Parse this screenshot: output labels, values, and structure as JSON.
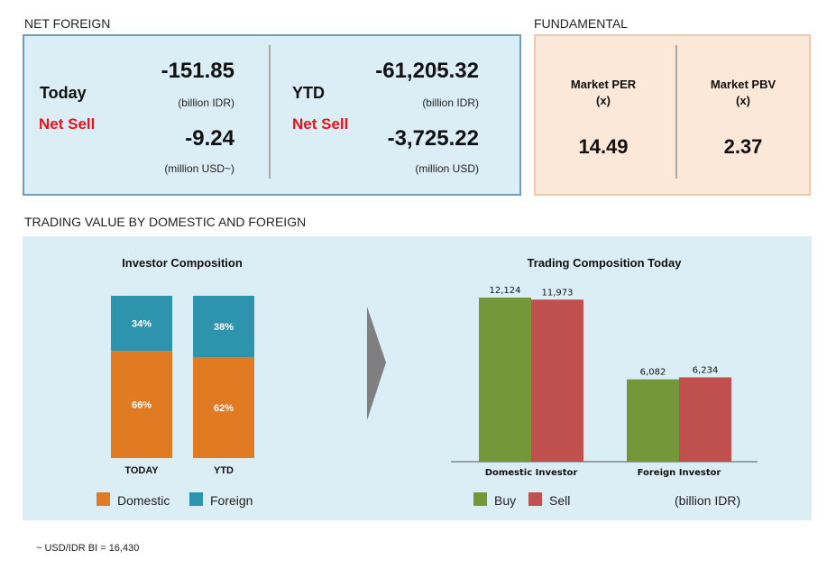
{
  "net_foreign": {
    "title": "NET FOREIGN",
    "today": {
      "label": "Today",
      "status": "Net Sell",
      "idr_value": "-151.85",
      "idr_unit": "(billion IDR)",
      "usd_value": "-9.24",
      "usd_unit": "(million USD~)"
    },
    "ytd": {
      "label": "YTD",
      "status": "Net Sell",
      "idr_value": "-61,205.32",
      "idr_unit": "(billion IDR)",
      "usd_value": "-3,725.22",
      "usd_unit": "(million USD)"
    }
  },
  "fundamental": {
    "title": "FUNDAMENTAL",
    "per": {
      "label": "Market PER",
      "unit": "(x)",
      "value": "14.49"
    },
    "pbv": {
      "label": "Market PBV",
      "unit": "(x)",
      "value": "2.37"
    }
  },
  "trading_section": {
    "title": "TRADING VALUE BY DOMESTIC AND FOREIGN"
  },
  "footnote": "~ USD/IDR BI = 16,430",
  "colors": {
    "domestic": "#e07b24",
    "foreign": "#2e94ad",
    "buy": "#76963a",
    "sell": "#c0504d",
    "net_sell": "#e8121c"
  },
  "chart_data": [
    {
      "type": "bar",
      "stacked": true,
      "title": "Investor Composition",
      "categories": [
        "TODAY",
        "YTD"
      ],
      "series": [
        {
          "name": "Domestic",
          "values": [
            66,
            62
          ],
          "labels": [
            "66%",
            "62%"
          ]
        },
        {
          "name": "Foreign",
          "values": [
            34,
            38
          ],
          "labels": [
            "34%",
            "38%"
          ]
        }
      ],
      "ylim": [
        0,
        100
      ],
      "legend": "bottom",
      "grid": false
    },
    {
      "type": "bar",
      "title": "Trading Composition Today",
      "categories": [
        "Domestic Investor",
        "Foreign Investor"
      ],
      "series": [
        {
          "name": "Buy",
          "values": [
            12124,
            6082
          ],
          "labels": [
            "12,124",
            "6,082"
          ]
        },
        {
          "name": "Sell",
          "values": [
            11973,
            6234
          ],
          "labels": [
            "11,973",
            "6,234"
          ]
        }
      ],
      "unit_note": "(billion IDR)",
      "ylim": [
        0,
        13000
      ],
      "legend": "bottom",
      "grid": false
    }
  ]
}
